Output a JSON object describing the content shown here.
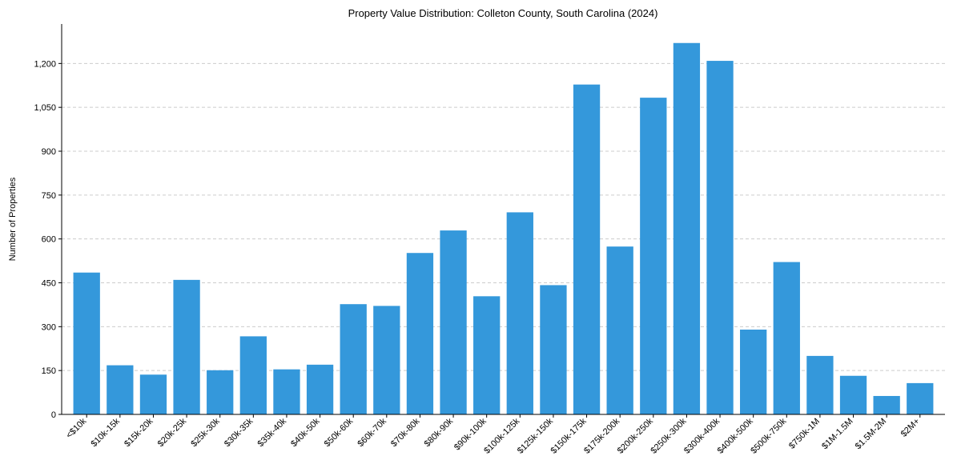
{
  "chart_data": {
    "type": "bar",
    "title": "Property Value Distribution: Colleton County, South Carolina (2024)",
    "xlabel": "",
    "ylabel": "Number of Properties",
    "ylim": [
      0,
      1335
    ],
    "yticks": [
      0,
      150,
      300,
      450,
      600,
      750,
      900,
      1050,
      1200
    ],
    "ytick_labels": [
      "0",
      "150",
      "300",
      "450",
      "600",
      "750",
      "900",
      "1,050",
      "1,200"
    ],
    "grid": "y-dashed",
    "bar_color": "#3498db",
    "categories": [
      "<$10k",
      "$10k-15k",
      "$15k-20k",
      "$20k-25k",
      "$25k-30k",
      "$30k-35k",
      "$35k-40k",
      "$40k-50k",
      "$50k-60k",
      "$60k-70k",
      "$70k-80k",
      "$80k-90k",
      "$90k-100k",
      "$100k-125k",
      "$125k-150k",
      "$150k-175k",
      "$175k-200k",
      "$200k-250k",
      "$250k-300k",
      "$300k-400k",
      "$400k-500k",
      "$500k-750k",
      "$750k-1M",
      "$1M-1.5M",
      "$1.5M-2M",
      "$2M+"
    ],
    "values": [
      485,
      168,
      136,
      460,
      151,
      267,
      154,
      170,
      377,
      371,
      552,
      629,
      404,
      691,
      442,
      1128,
      574,
      1083,
      1270,
      1209,
      290,
      521,
      200,
      132,
      63,
      107
    ]
  }
}
